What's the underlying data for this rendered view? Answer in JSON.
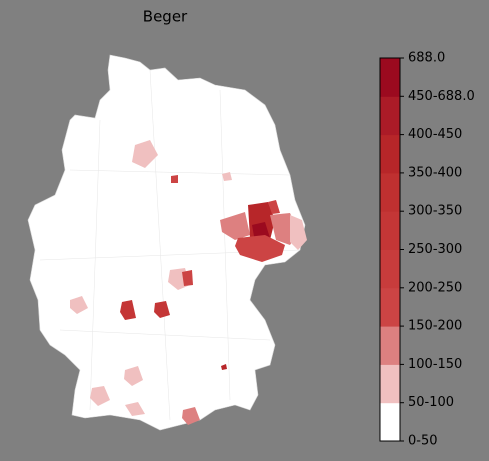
{
  "title": "Beger",
  "legend": {
    "ticks": [
      "0-50",
      "50-100",
      "100-150",
      "150-200",
      "200-250",
      "250-300",
      "300-350",
      "350-400",
      "400-450",
      "450-688.0",
      "688.0"
    ],
    "colors": [
      "#ffffff",
      "#f0c0c0",
      "#dd8080",
      "#cc4444",
      "#c83c3c",
      "#c43636",
      "#bf3030",
      "#b72629",
      "#ab1b27",
      "#9b0a1f"
    ]
  }
}
